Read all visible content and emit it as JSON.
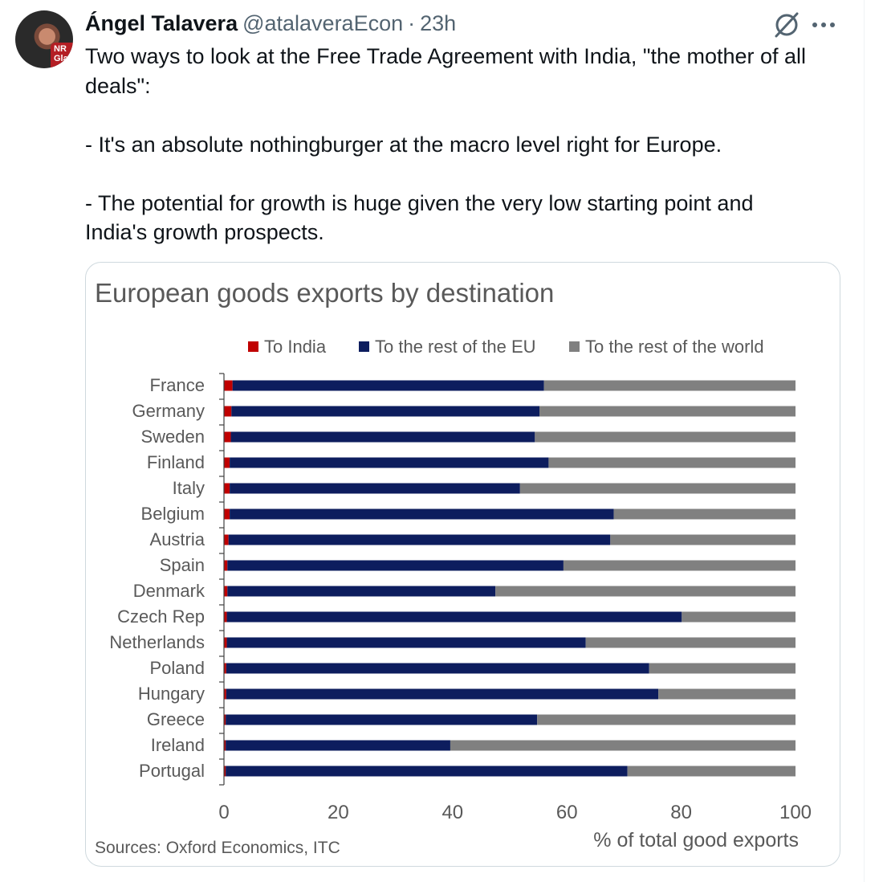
{
  "tweet": {
    "author_name": "Ángel Talavera",
    "handle": "@atalaveraEcon",
    "separator": "·",
    "time": "23h",
    "avatar_text": "NR Gla",
    "lines": [
      "Two ways to look at the Free Trade Agreement with India, \"the mother of all",
      "deals\":",
      "",
      "- It's an absolute nothingburger at the macro level right for Europe.",
      "",
      "- The potential for growth is huge given the very low starting point and",
      "India's growth prospects."
    ]
  },
  "icons": {
    "grok": "grok-icon",
    "more": "more-dots-icon"
  },
  "colors": {
    "india": "#c00000",
    "eu": "#0d1d5e",
    "world": "#808080",
    "text": "#595959",
    "axis": "#404040"
  },
  "chart_data": {
    "type": "bar",
    "orientation": "horizontal",
    "stacked": true,
    "title": "European goods exports by destination",
    "xlabel": "% of total good exports",
    "source": "Sources: Oxford Economics, ITC",
    "xlim": [
      0,
      100
    ],
    "xticks": [
      0,
      20,
      40,
      60,
      80,
      100
    ],
    "legend_position": "top",
    "grid": false,
    "categories": [
      "France",
      "Germany",
      "Sweden",
      "Finland",
      "Italy",
      "Belgium",
      "Austria",
      "Spain",
      "Denmark",
      "Czech Rep",
      "Netherlands",
      "Poland",
      "Hungary",
      "Greece",
      "Ireland",
      "Portugal"
    ],
    "series": [
      {
        "name": "To India",
        "values": [
          1.5,
          1.3,
          1.2,
          1.0,
          1.0,
          1.0,
          0.8,
          0.6,
          0.6,
          0.5,
          0.5,
          0.4,
          0.4,
          0.3,
          0.3,
          0.3
        ]
      },
      {
        "name": "To the rest of the EU",
        "values": [
          54.5,
          53.9,
          53.2,
          55.8,
          50.8,
          67.2,
          66.8,
          58.8,
          46.9,
          79.6,
          62.8,
          74.0,
          75.6,
          54.5,
          39.3,
          70.3
        ]
      },
      {
        "name": "To the rest of the world",
        "values": [
          44.0,
          44.8,
          45.6,
          43.2,
          48.2,
          31.8,
          32.4,
          40.6,
          52.5,
          19.9,
          36.7,
          25.6,
          24.0,
          45.2,
          60.4,
          29.4
        ]
      }
    ]
  }
}
